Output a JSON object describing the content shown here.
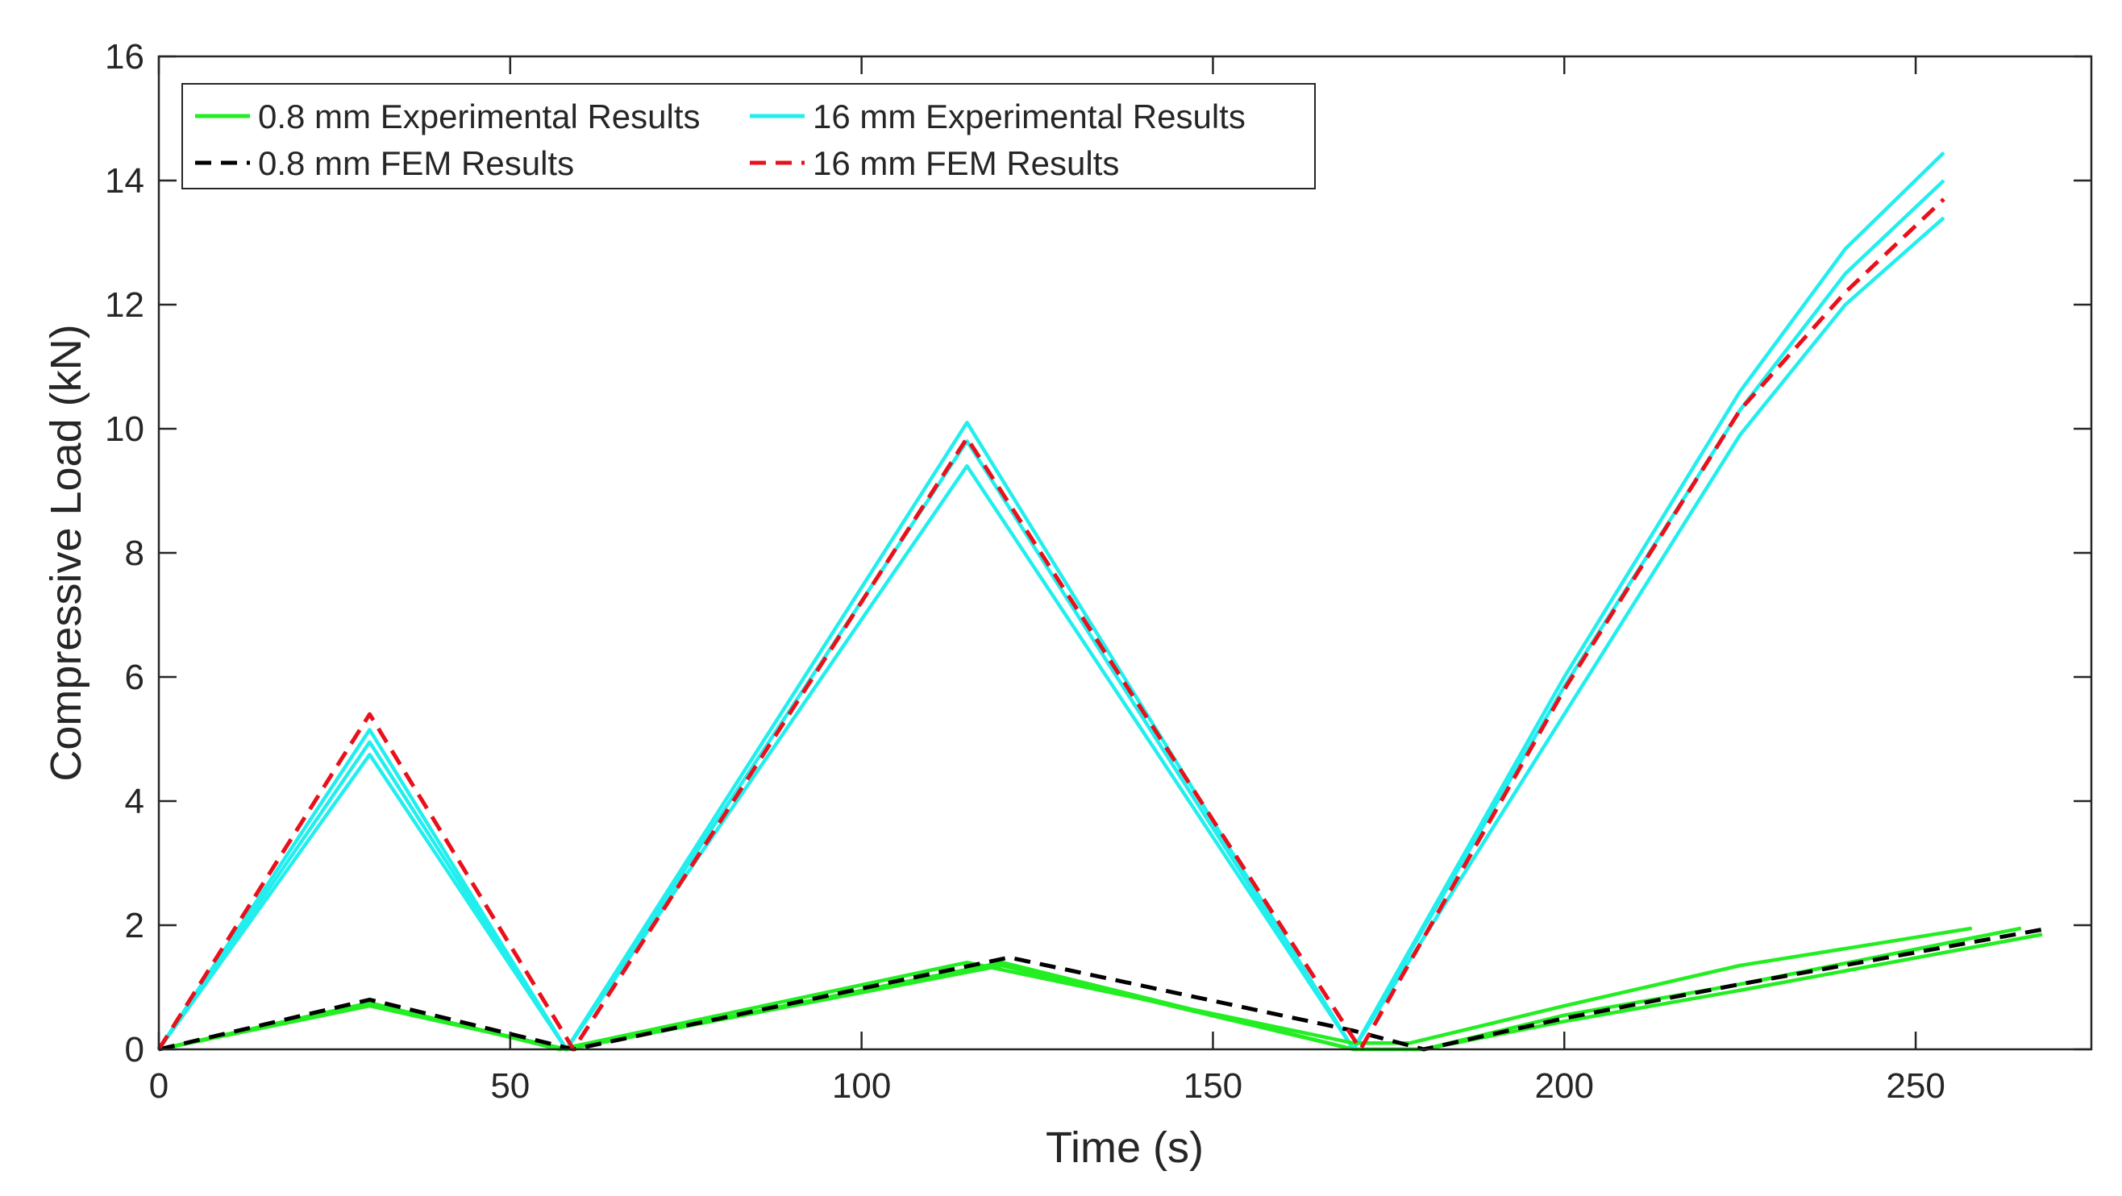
{
  "chart_data": {
    "type": "line",
    "title": "",
    "xlabel": "Time (s)",
    "ylabel": "Compressive Load (kN)",
    "xlim": [
      0,
      275
    ],
    "ylim": [
      0,
      16
    ],
    "xticks": [
      0,
      50,
      100,
      150,
      200,
      250
    ],
    "yticks": [
      0,
      2,
      4,
      6,
      8,
      10,
      12,
      14,
      16
    ],
    "xtick_labels": [
      "0",
      "50",
      "100",
      "150",
      "200",
      "250"
    ],
    "ytick_labels": [
      "0",
      "2",
      "4",
      "6",
      "8",
      "10",
      "12",
      "14",
      "16"
    ],
    "grid": false,
    "legend_position": "top-left",
    "legend": [
      {
        "label": "0.8 mm Experimental Results",
        "color": "#22ee22",
        "dash": "solid"
      },
      {
        "label": "16 mm Experimental Results",
        "color": "#22eeee",
        "dash": "solid"
      },
      {
        "label": "0.8 mm FEM Results",
        "color": "#000000",
        "dash": "dashed"
      },
      {
        "label": "16 mm FEM Results",
        "color": "#e8101a",
        "dash": "dashed"
      }
    ],
    "series": [
      {
        "name": "16 mm Experimental Results",
        "color": "#22eeee",
        "dash": "solid",
        "x": [
          0,
          30,
          58,
          115,
          170,
          200,
          225,
          240,
          254
        ],
        "y": [
          0,
          5.15,
          0,
          10.1,
          0,
          6.0,
          10.6,
          12.9,
          14.45
        ]
      },
      {
        "name": "16 mm Experimental Results",
        "color": "#22eeee",
        "dash": "solid",
        "x": [
          0,
          30,
          58,
          115,
          170,
          200,
          225,
          240,
          254
        ],
        "y": [
          0,
          4.95,
          0,
          9.8,
          0,
          5.85,
          10.3,
          12.5,
          14.0
        ]
      },
      {
        "name": "16 mm Experimental Results",
        "color": "#22eeee",
        "dash": "solid",
        "x": [
          0,
          30,
          58,
          115,
          170,
          200,
          225,
          240,
          254
        ],
        "y": [
          0,
          4.75,
          0,
          9.4,
          0,
          5.4,
          9.9,
          12.0,
          13.4
        ]
      },
      {
        "name": "0.8 mm Experimental Results",
        "color": "#22ee22",
        "dash": "solid",
        "x": [
          0,
          30,
          57,
          115,
          170,
          178,
          200,
          225,
          258
        ],
        "y": [
          0,
          0.75,
          0,
          1.4,
          0.1,
          0.1,
          0.7,
          1.35,
          1.95
        ]
      },
      {
        "name": "0.8 mm Experimental Results",
        "color": "#22ee22",
        "dash": "solid",
        "x": [
          0,
          30,
          58,
          120,
          170,
          180,
          200,
          225,
          265
        ],
        "y": [
          0,
          0.72,
          0,
          1.35,
          0.0,
          0.0,
          0.55,
          1.05,
          1.95
        ]
      },
      {
        "name": "0.8 mm Experimental Results",
        "color": "#22ee22",
        "dash": "solid",
        "x": [
          0,
          30,
          58,
          120,
          170,
          180,
          200,
          225,
          268
        ],
        "y": [
          0,
          0.7,
          0,
          1.4,
          0.0,
          0.0,
          0.45,
          0.95,
          1.85
        ]
      },
      {
        "name": "0.8 mm FEM Results",
        "color": "#000000",
        "dash": "dashed",
        "x": [
          0,
          30,
          59,
          121,
          170,
          180,
          200,
          225,
          269
        ],
        "y": [
          0,
          0.8,
          0,
          1.48,
          0.3,
          0.0,
          0.5,
          1.05,
          1.95
        ]
      },
      {
        "name": "16 mm FEM Results",
        "color": "#e8101a",
        "dash": "dashed",
        "x": [
          0,
          30,
          59,
          115,
          171,
          200,
          225,
          240,
          254
        ],
        "y": [
          0,
          5.4,
          0,
          9.85,
          0,
          5.8,
          10.3,
          12.2,
          13.7
        ]
      }
    ]
  }
}
